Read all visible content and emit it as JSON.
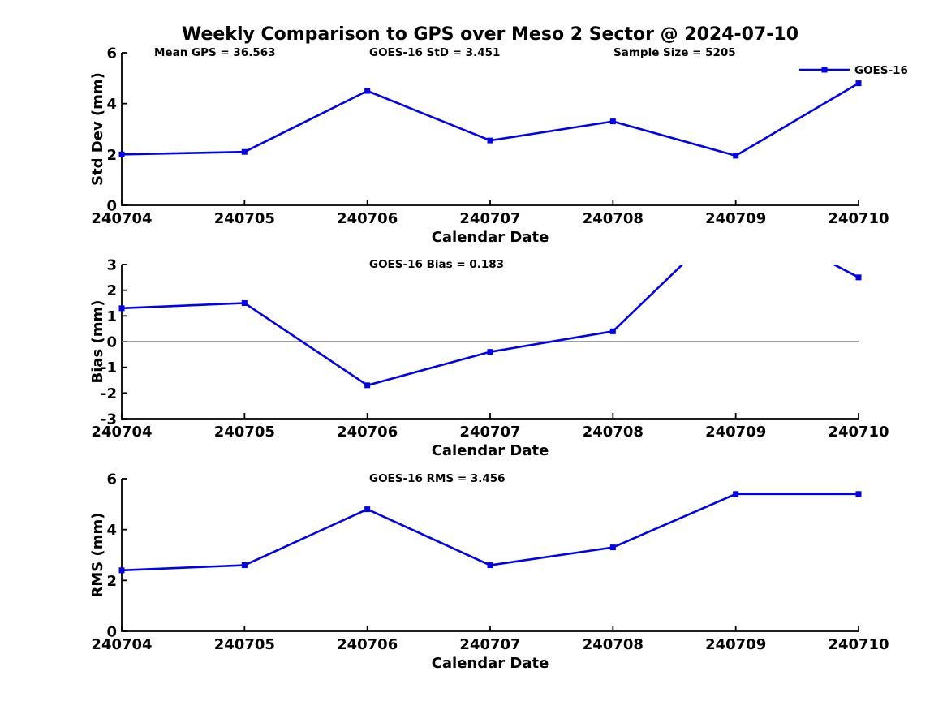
{
  "title": "Weekly Comparison to GPS over Meso 2 Sector @ 2024-07-10",
  "legend": {
    "label": "GOES-16",
    "marker": "square"
  },
  "colors": {
    "series": "#0000EE",
    "axis": "#000000",
    "zero_line": "#808080",
    "text": "#000000",
    "background": "#FFFFFF"
  },
  "chart_data": [
    {
      "type": "line",
      "categories": [
        "240704",
        "240705",
        "240706",
        "240707",
        "240708",
        "240709",
        "240710"
      ],
      "series": [
        {
          "name": "GOES-16",
          "marker": "square",
          "values": [
            2.0,
            2.1,
            4.5,
            2.55,
            3.3,
            1.95,
            4.8
          ]
        }
      ],
      "title": "",
      "xlabel": "Calendar Date",
      "ylabel": "Std Dev (mm)",
      "ylim": [
        0,
        6
      ],
      "yticks": [
        0,
        2,
        4,
        6
      ],
      "grid": false,
      "legend_position": "top-right",
      "annotations": [
        "Mean GPS = 36.563",
        "GOES-16 StD = 3.451",
        "Sample Size = 5205"
      ]
    },
    {
      "type": "line",
      "categories": [
        "240704",
        "240705",
        "240706",
        "240707",
        "240708",
        "240709",
        "240710"
      ],
      "series": [
        {
          "name": "GOES-16",
          "marker": "square",
          "values": [
            1.3,
            1.5,
            -1.7,
            -0.4,
            0.4,
            5.0,
            2.5
          ]
        }
      ],
      "title": "",
      "xlabel": "Calendar Date",
      "ylabel": "Bias (mm)",
      "ylim": [
        -3,
        3
      ],
      "yticks": [
        -3,
        -2,
        -1,
        0,
        1,
        2,
        3
      ],
      "grid": false,
      "zero_line": true,
      "clip_note": "value 5.0 at 240709 exceeds ylim and is clipped at top of axes",
      "annotations": [
        "GOES-16 Bias  = 0.183"
      ]
    },
    {
      "type": "line",
      "categories": [
        "240704",
        "240705",
        "240706",
        "240707",
        "240708",
        "240709",
        "240710"
      ],
      "series": [
        {
          "name": "GOES-16",
          "marker": "square",
          "values": [
            2.4,
            2.6,
            4.8,
            2.6,
            3.3,
            5.4,
            5.4
          ]
        }
      ],
      "title": "",
      "xlabel": "Calendar Date",
      "ylabel": "RMS (mm)",
      "ylim": [
        0,
        6
      ],
      "yticks": [
        0,
        2,
        4,
        6
      ],
      "grid": false,
      "annotations": [
        "GOES-16 RMS = 3.456"
      ]
    }
  ]
}
